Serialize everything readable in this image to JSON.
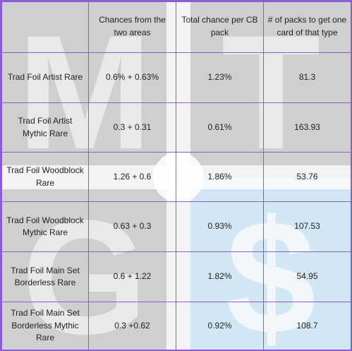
{
  "header": {
    "col1": "",
    "col2": "Chances from the two areas",
    "col3": "Total chance per CB pack",
    "col4": "# of packs to get one card of that type"
  },
  "rows": [
    {
      "type": "Trad Foil Artist Rare",
      "chances": "0.6% + 0.63%",
      "total": "1.23%",
      "packs": "81.3"
    },
    {
      "type": "Trad Foil Artist Mythic Rare",
      "chances": "0.3 + 0.31",
      "total": "0.61%",
      "packs": "163.93"
    },
    {
      "type": "Trad Foil Woodblock Rare",
      "chances": "1.26 + 0.6",
      "total": "1.86%",
      "packs": "53.76"
    },
    {
      "type": "Trad Foil Woodblock Mythic Rare",
      "chances": "0.63 + 0.3",
      "total": "0.93%",
      "packs": "107.53"
    },
    {
      "type": "Trad Foil Main Set Borderless Rare",
      "chances": "0.6 + 1.22",
      "total": "1.82%",
      "packs": "54.95"
    },
    {
      "type": "Trad Foil Main Set Borderless Mythic Rare",
      "chances": "0.3 +0.62",
      "total": "0.92%",
      "packs": "108.7"
    }
  ],
  "watermark": {
    "letters": [
      "M",
      "T",
      "G",
      "$"
    ],
    "gray": "#cfcfcf",
    "blue": "#d2e7f3",
    "glyph_color": "#ffffff",
    "border_color": "#8a5cd6"
  }
}
